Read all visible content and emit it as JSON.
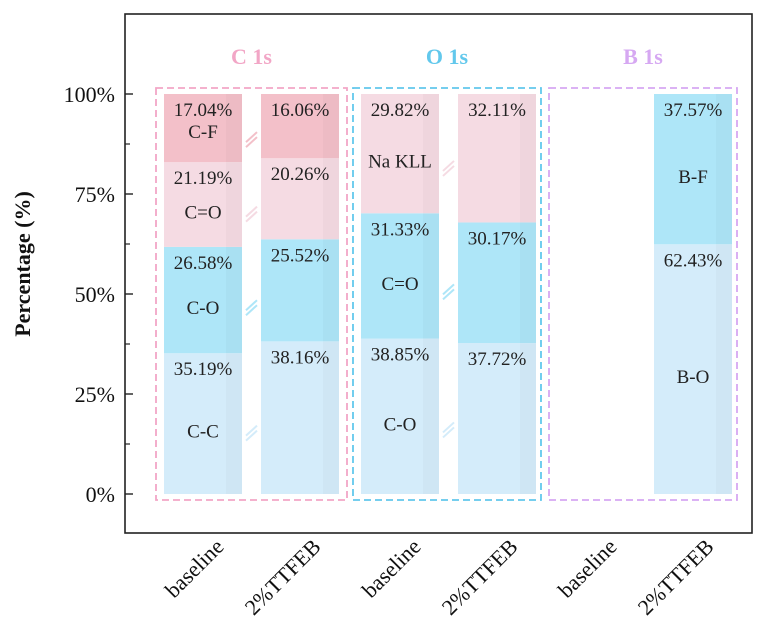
{
  "chart_data": {
    "type": "bar",
    "stacked": true,
    "ylabel": "Percentage (%)",
    "ylim": [
      0,
      100
    ],
    "yticks": [
      "0%",
      "25%",
      "50%",
      "75%",
      "100%"
    ],
    "groups": [
      {
        "title": "C 1s",
        "color": "#f2a6c6",
        "bars": [
          {
            "category": "baseline",
            "segments": [
              {
                "name": "C-C",
                "value": 35.19,
                "label": "35.19%",
                "color": "#d4ecfa"
              },
              {
                "name": "C-O",
                "value": 26.58,
                "label": "26.58%",
                "color": "#aee6f8"
              },
              {
                "name": "C=O",
                "value": 21.19,
                "label": "21.19%",
                "color": "#f5dbe3"
              },
              {
                "name": "C-F",
                "value": 17.04,
                "label": "17.04%",
                "color": "#f3c0c9"
              }
            ]
          },
          {
            "category": "2%TTFEB",
            "segments": [
              {
                "name": "C-C",
                "value": 38.16,
                "label": "38.16%",
                "color": "#d4ecfa"
              },
              {
                "name": "C-O",
                "value": 25.52,
                "label": "25.52%",
                "color": "#aee6f8"
              },
              {
                "name": "C=O",
                "value": 20.26,
                "label": "20.26%",
                "color": "#f5dbe3"
              },
              {
                "name": "C-F",
                "value": 16.06,
                "label": "16.06%",
                "color": "#f3c0c9"
              }
            ]
          }
        ]
      },
      {
        "title": "O 1s",
        "color": "#62c8ec",
        "bars": [
          {
            "category": "baseline",
            "segments": [
              {
                "name": "C-O",
                "value": 38.85,
                "label": "38.85%",
                "color": "#d4ecfa"
              },
              {
                "name": "C=O",
                "value": 31.33,
                "label": "31.33%",
                "color": "#aee6f8"
              },
              {
                "name": "Na KLL",
                "value": 29.82,
                "label": "29.82%",
                "color": "#f5dbe3"
              }
            ]
          },
          {
            "category": "2%TTFEB",
            "segments": [
              {
                "name": "C-O",
                "value": 37.72,
                "label": "37.72%",
                "color": "#d4ecfa"
              },
              {
                "name": "C=O",
                "value": 30.17,
                "label": "30.17%",
                "color": "#aee6f8"
              },
              {
                "name": "Na KLL",
                "value": 32.11,
                "label": "32.11%",
                "color": "#f5dbe3"
              }
            ]
          }
        ]
      },
      {
        "title": "B 1s",
        "color": "#d6a8f2",
        "bars": [
          {
            "category": "baseline",
            "segments": []
          },
          {
            "category": "2%TTFEB",
            "segments": [
              {
                "name": "B-O",
                "value": 62.43,
                "label": "62.43%",
                "color": "#d4ecfa"
              },
              {
                "name": "B-F",
                "value": 37.57,
                "label": "37.57%",
                "color": "#aee6f8"
              }
            ]
          }
        ]
      }
    ]
  }
}
